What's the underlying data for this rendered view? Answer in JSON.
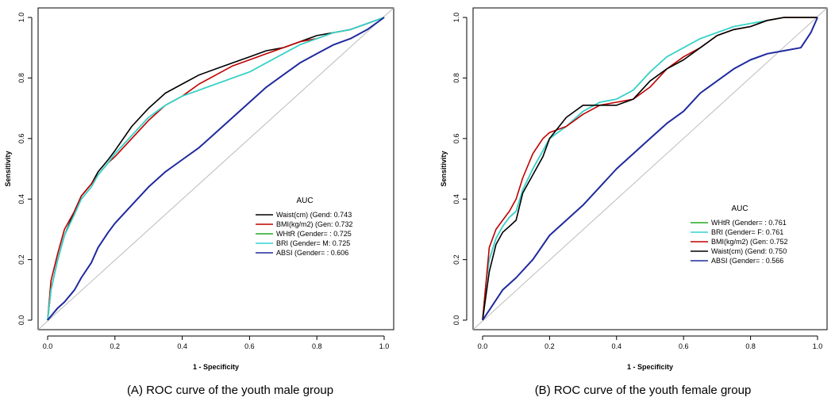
{
  "chart_data": [
    {
      "type": "line",
      "caption": "(A)     ROC curve of the youth male group",
      "xlabel": "1 - Specificity",
      "ylabel": "Sensitivity",
      "xlim": [
        0,
        1
      ],
      "ylim": [
        0,
        1
      ],
      "xticks": [
        "0.0",
        "0.2",
        "0.4",
        "0.6",
        "0.8",
        "1.0"
      ],
      "yticks": [
        "0.0",
        "0.2",
        "0.4",
        "0.6",
        "0.8",
        "1.0"
      ],
      "legend_title": "AUC",
      "legend_position": "bottom-right",
      "diagonal_color": "#bbbbbb",
      "series": [
        {
          "name": "Waist(cm) (Gend: 0.743",
          "color": "#000000",
          "x": [
            0,
            0.01,
            0.03,
            0.05,
            0.08,
            0.1,
            0.13,
            0.15,
            0.18,
            0.2,
            0.25,
            0.3,
            0.35,
            0.4,
            0.45,
            0.5,
            0.55,
            0.6,
            0.65,
            0.7,
            0.75,
            0.8,
            0.85,
            0.9,
            0.95,
            1.0
          ],
          "y": [
            0,
            0.1,
            0.2,
            0.28,
            0.36,
            0.41,
            0.45,
            0.49,
            0.53,
            0.56,
            0.64,
            0.7,
            0.75,
            0.78,
            0.81,
            0.83,
            0.85,
            0.87,
            0.89,
            0.9,
            0.92,
            0.94,
            0.95,
            0.96,
            0.98,
            1.0
          ]
        },
        {
          "name": "BMI(kg/m2) (Gen: 0.732",
          "color": "#c00000",
          "x": [
            0,
            0.01,
            0.03,
            0.05,
            0.08,
            0.1,
            0.13,
            0.15,
            0.18,
            0.2,
            0.25,
            0.3,
            0.35,
            0.4,
            0.45,
            0.5,
            0.55,
            0.6,
            0.65,
            0.7,
            0.75,
            0.8,
            0.85,
            0.9,
            0.95,
            1.0
          ],
          "y": [
            0,
            0.13,
            0.22,
            0.3,
            0.36,
            0.41,
            0.45,
            0.48,
            0.52,
            0.54,
            0.6,
            0.66,
            0.71,
            0.74,
            0.78,
            0.81,
            0.84,
            0.86,
            0.88,
            0.9,
            0.92,
            0.93,
            0.95,
            0.96,
            0.98,
            1.0
          ]
        },
        {
          "name": "WHtR (Gender= : 0.725",
          "color": "#22aa22",
          "x": [
            0,
            0.01,
            0.03,
            0.05,
            0.08,
            0.1,
            0.13,
            0.15,
            0.18,
            0.2,
            0.25,
            0.3,
            0.35,
            0.4,
            0.45,
            0.5,
            0.55,
            0.6,
            0.65,
            0.7,
            0.75,
            0.8,
            0.85,
            0.9,
            0.95,
            1.0
          ],
          "y": [
            0,
            0.1,
            0.2,
            0.28,
            0.35,
            0.4,
            0.44,
            0.48,
            0.52,
            0.55,
            0.61,
            0.67,
            0.71,
            0.74,
            0.76,
            0.78,
            0.8,
            0.82,
            0.85,
            0.88,
            0.91,
            0.93,
            0.95,
            0.96,
            0.98,
            1.0
          ]
        },
        {
          "name": "BRI (Gender= M: 0.725",
          "color": "#33d4d4",
          "x": [
            0,
            0.01,
            0.03,
            0.05,
            0.08,
            0.1,
            0.13,
            0.15,
            0.18,
            0.2,
            0.25,
            0.3,
            0.35,
            0.4,
            0.45,
            0.5,
            0.55,
            0.6,
            0.65,
            0.7,
            0.75,
            0.8,
            0.85,
            0.9,
            0.95,
            1.0
          ],
          "y": [
            0,
            0.1,
            0.2,
            0.28,
            0.35,
            0.4,
            0.44,
            0.48,
            0.52,
            0.55,
            0.61,
            0.67,
            0.71,
            0.74,
            0.76,
            0.78,
            0.8,
            0.82,
            0.85,
            0.88,
            0.91,
            0.93,
            0.95,
            0.96,
            0.98,
            1.0
          ]
        },
        {
          "name": "ABSI (Gender= : 0.606",
          "color": "#1f2a9e",
          "x": [
            0,
            0.03,
            0.05,
            0.08,
            0.1,
            0.13,
            0.15,
            0.18,
            0.2,
            0.25,
            0.3,
            0.35,
            0.4,
            0.45,
            0.5,
            0.55,
            0.6,
            0.65,
            0.7,
            0.75,
            0.8,
            0.85,
            0.9,
            0.95,
            1.0
          ],
          "y": [
            0,
            0.04,
            0.06,
            0.1,
            0.14,
            0.19,
            0.24,
            0.29,
            0.32,
            0.38,
            0.44,
            0.49,
            0.53,
            0.57,
            0.62,
            0.67,
            0.72,
            0.77,
            0.81,
            0.85,
            0.88,
            0.91,
            0.93,
            0.96,
            1.0
          ]
        }
      ]
    },
    {
      "type": "line",
      "caption": "(B) ROC curve of the youth female group",
      "xlabel": "1 - Specificity",
      "ylabel": "Sensitivity",
      "xlim": [
        0,
        1
      ],
      "ylim": [
        0,
        1
      ],
      "xticks": [
        "0.0",
        "0.2",
        "0.4",
        "0.6",
        "0.8",
        "1.0"
      ],
      "yticks": [
        "0.0",
        "0.2",
        "0.4",
        "0.6",
        "0.8",
        "1.0"
      ],
      "legend_title": "AUC",
      "legend_position": "bottom-right",
      "diagonal_color": "#bbbbbb",
      "series": [
        {
          "name": "WHtR (Gender= : 0.761",
          "color": "#22aa22",
          "x": [
            0,
            0.01,
            0.02,
            0.04,
            0.06,
            0.08,
            0.1,
            0.12,
            0.15,
            0.18,
            0.2,
            0.25,
            0.3,
            0.35,
            0.4,
            0.45,
            0.5,
            0.55,
            0.6,
            0.65,
            0.7,
            0.75,
            0.8,
            0.85,
            0.9,
            0.95,
            1.0
          ],
          "y": [
            0,
            0.12,
            0.2,
            0.27,
            0.31,
            0.34,
            0.36,
            0.43,
            0.5,
            0.56,
            0.6,
            0.64,
            0.69,
            0.72,
            0.73,
            0.76,
            0.82,
            0.87,
            0.9,
            0.93,
            0.95,
            0.97,
            0.98,
            0.99,
            1.0,
            1.0,
            1.0
          ]
        },
        {
          "name": "BRI (Gender= F: 0.761",
          "color": "#33d4d4",
          "x": [
            0,
            0.01,
            0.02,
            0.04,
            0.06,
            0.08,
            0.1,
            0.12,
            0.15,
            0.18,
            0.2,
            0.25,
            0.3,
            0.35,
            0.4,
            0.45,
            0.5,
            0.55,
            0.6,
            0.65,
            0.7,
            0.75,
            0.8,
            0.85,
            0.9,
            0.95,
            1.0
          ],
          "y": [
            0,
            0.12,
            0.2,
            0.27,
            0.31,
            0.34,
            0.36,
            0.43,
            0.5,
            0.56,
            0.6,
            0.64,
            0.69,
            0.72,
            0.73,
            0.76,
            0.82,
            0.87,
            0.9,
            0.93,
            0.95,
            0.97,
            0.98,
            0.99,
            1.0,
            1.0,
            1.0
          ]
        },
        {
          "name": "BMI(kg/m2) (Gen: 0.752",
          "color": "#c00000",
          "x": [
            0,
            0.01,
            0.02,
            0.04,
            0.06,
            0.08,
            0.1,
            0.12,
            0.15,
            0.18,
            0.2,
            0.25,
            0.3,
            0.35,
            0.4,
            0.45,
            0.5,
            0.55,
            0.6,
            0.65,
            0.7,
            0.75,
            0.8,
            0.85,
            0.9,
            0.95,
            1.0
          ],
          "y": [
            0,
            0.12,
            0.24,
            0.3,
            0.33,
            0.36,
            0.4,
            0.47,
            0.55,
            0.6,
            0.62,
            0.64,
            0.68,
            0.71,
            0.72,
            0.73,
            0.77,
            0.83,
            0.87,
            0.9,
            0.94,
            0.96,
            0.97,
            0.99,
            1.0,
            1.0,
            1.0
          ]
        },
        {
          "name": "Waist(cm) (Gend: 0.750",
          "color": "#000000",
          "x": [
            0,
            0.01,
            0.02,
            0.04,
            0.06,
            0.08,
            0.1,
            0.12,
            0.15,
            0.18,
            0.2,
            0.25,
            0.3,
            0.35,
            0.4,
            0.45,
            0.5,
            0.55,
            0.6,
            0.65,
            0.7,
            0.75,
            0.8,
            0.85,
            0.9,
            0.95,
            1.0
          ],
          "y": [
            0,
            0.08,
            0.16,
            0.25,
            0.29,
            0.31,
            0.33,
            0.42,
            0.48,
            0.54,
            0.6,
            0.67,
            0.71,
            0.71,
            0.71,
            0.73,
            0.79,
            0.83,
            0.86,
            0.9,
            0.94,
            0.96,
            0.97,
            0.99,
            1.0,
            1.0,
            1.0
          ]
        },
        {
          "name": "ABSI (Gender= : 0.566",
          "color": "#1f2a9e",
          "x": [
            0,
            0.03,
            0.06,
            0.1,
            0.15,
            0.2,
            0.25,
            0.3,
            0.35,
            0.4,
            0.45,
            0.5,
            0.55,
            0.6,
            0.65,
            0.7,
            0.75,
            0.8,
            0.85,
            0.9,
            0.95,
            0.98,
            1.0
          ],
          "y": [
            0,
            0.05,
            0.1,
            0.14,
            0.2,
            0.28,
            0.33,
            0.38,
            0.44,
            0.5,
            0.55,
            0.6,
            0.65,
            0.69,
            0.75,
            0.79,
            0.83,
            0.86,
            0.88,
            0.89,
            0.9,
            0.95,
            1.0
          ]
        }
      ]
    }
  ]
}
